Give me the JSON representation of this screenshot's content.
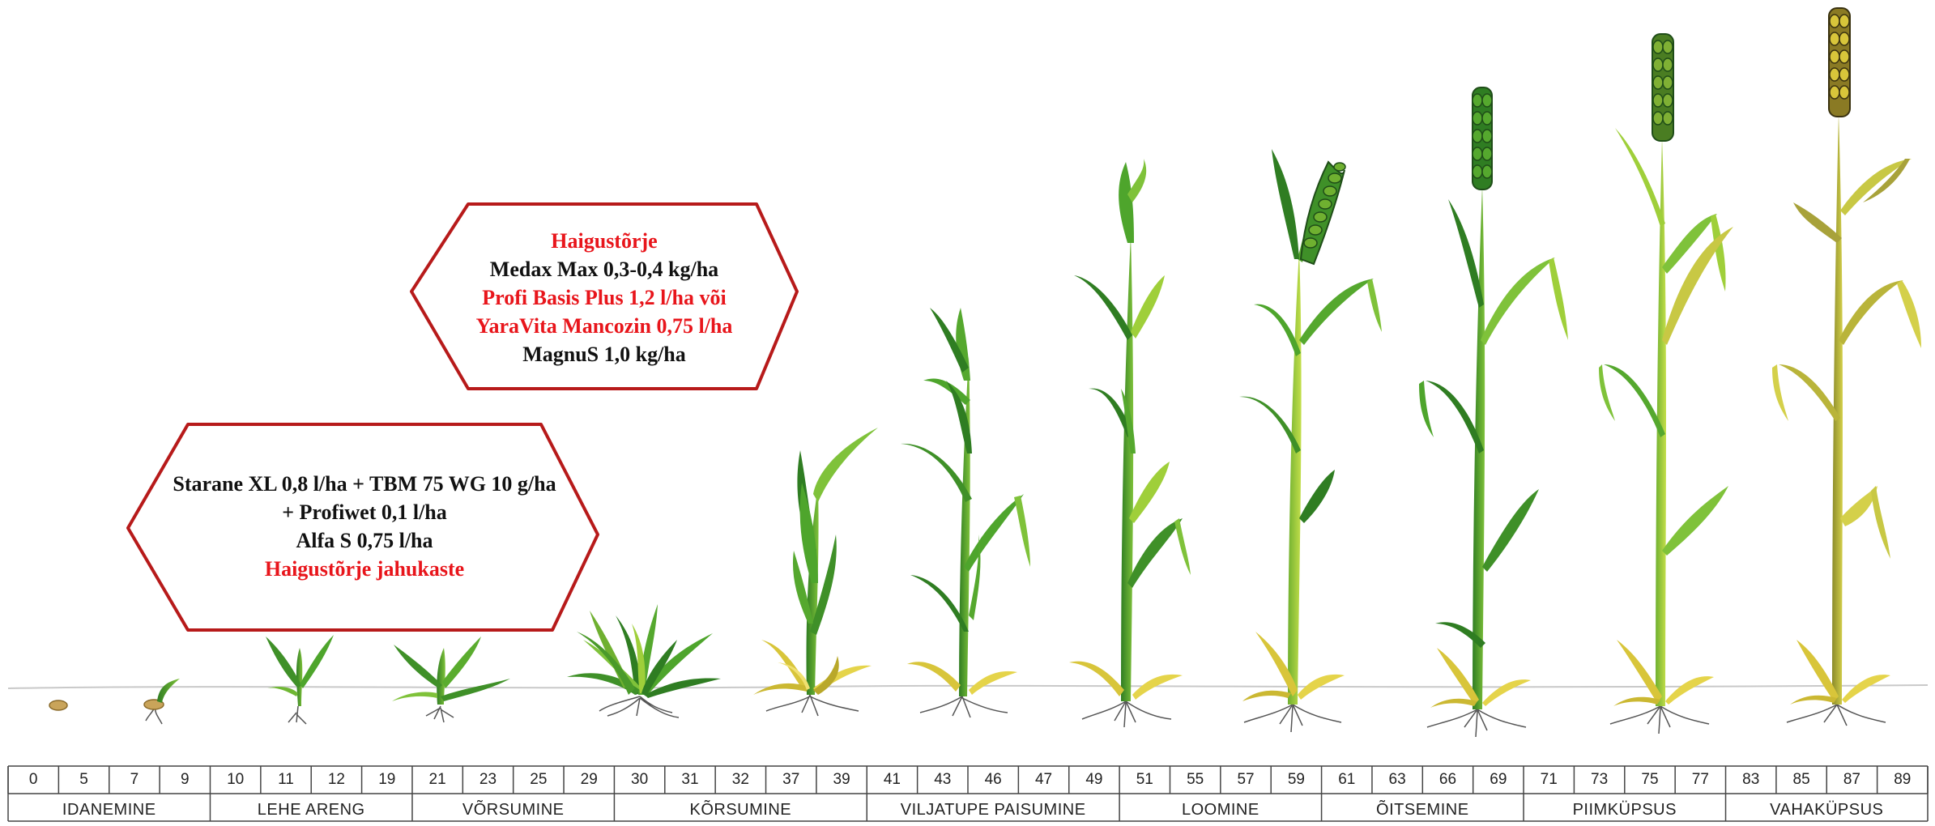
{
  "colors": {
    "dark_green": "#2f7d22",
    "mid_green": "#55a82e",
    "light_green": "#9fcf3a",
    "yellow_green": "#c8c844",
    "straw": "#d8c53a",
    "olive": "#a8a23a",
    "red": "#e8151b",
    "hex_border": "#b71a1a",
    "root": "#555555"
  },
  "treatments": {
    "upper": {
      "lines": [
        {
          "text": "Haigustõrje",
          "accent": true
        },
        {
          "text": "Medax Max 0,3-0,4 kg/ha",
          "accent": false
        },
        {
          "text": "Profi Basis Plus 1,2 l/ha või",
          "accent": true
        },
        {
          "text": "YaraVita Mancozin 0,75 l/ha",
          "accent": true
        },
        {
          "text": "MagnuS 1,0 kg/ha",
          "accent": false
        }
      ]
    },
    "lower": {
      "lines": [
        {
          "text": "Starane XL 0,8 l/ha + TBM 75 WG 10 g/ha",
          "accent": false
        },
        {
          "text": "+ Profiwet 0,1 l/ha",
          "accent": false
        },
        {
          "text": "Alfa S 0,75 l/ha",
          "accent": false
        },
        {
          "text": "Haigustõrje jahukaste",
          "accent": true
        }
      ]
    }
  },
  "bbch_codes": [
    "0",
    "5",
    "7",
    "9",
    "10",
    "11",
    "12",
    "19",
    "21",
    "23",
    "25",
    "29",
    "30",
    "31",
    "32",
    "37",
    "39",
    "41",
    "43",
    "46",
    "47",
    "49",
    "51",
    "55",
    "57",
    "59",
    "61",
    "63",
    "66",
    "69",
    "71",
    "73",
    "75",
    "77",
    "83",
    "85",
    "87",
    "89"
  ],
  "stages": [
    {
      "label": "IDANEMINE",
      "span": 4
    },
    {
      "label": "LEHE ARENG",
      "span": 4
    },
    {
      "label": "VÕRSUMINE",
      "span": 4
    },
    {
      "label": "KÕRSUMINE",
      "span": 5
    },
    {
      "label": "VILJATUPE PAISUMINE",
      "span": 5
    },
    {
      "label": "LOOMINE",
      "span": 4
    },
    {
      "label": "ÕITSEMINE",
      "span": 4
    },
    {
      "label": "PIIMKÜPSUS",
      "span": 4
    },
    {
      "label": "VAHAKÜPSUS",
      "span": 4
    }
  ]
}
